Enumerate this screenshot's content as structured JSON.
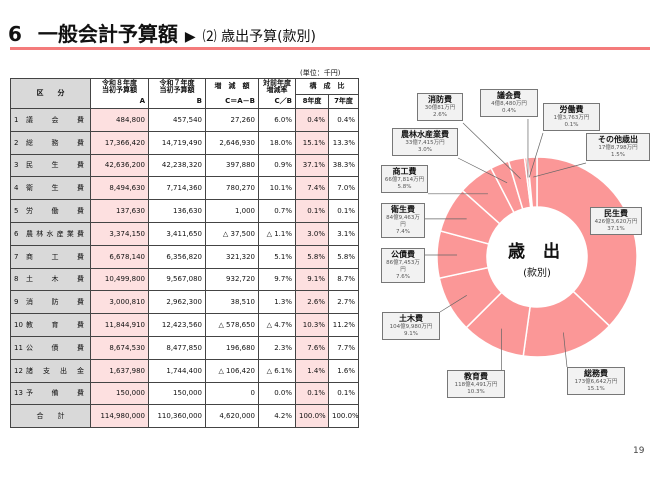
{
  "header": {
    "number": "6",
    "title": "一般会計予算額",
    "arrow": "▶",
    "subtitle": "⑵ 歳出予算(款別)"
  },
  "unit": "(単位：千円)",
  "page_number": "19",
  "table": {
    "headers": {
      "category": "区　　分",
      "a": "令和８年度\n当初予算額",
      "b": "令和７年度\n当初予算額",
      "c": "増　減　額",
      "cb": "対前年度\n増減率",
      "ratio": "構　成　比",
      "a_sub": "A",
      "b_sub": "B",
      "c_sub": "C＝A－B",
      "cb_sub": "C／B",
      "r8": "8年度",
      "r7": "7年度"
    },
    "rows": [
      {
        "no": "1",
        "name": "議　会　費",
        "a": "484,800",
        "b": "457,540",
        "c": "27,260",
        "cb": "6.0%",
        "r8": "0.4%",
        "r7": "0.4%"
      },
      {
        "no": "2",
        "name": "総　務　費",
        "a": "17,366,420",
        "b": "14,719,490",
        "c": "2,646,930",
        "cb": "18.0%",
        "r8": "15.1%",
        "r7": "13.3%"
      },
      {
        "no": "3",
        "name": "民　生　費",
        "a": "42,636,200",
        "b": "42,238,320",
        "c": "397,880",
        "cb": "0.9%",
        "r8": "37.1%",
        "r7": "38.3%"
      },
      {
        "no": "4",
        "name": "衛　生　費",
        "a": "8,494,630",
        "b": "7,714,360",
        "c": "780,270",
        "cb": "10.1%",
        "r8": "7.4%",
        "r7": "7.0%"
      },
      {
        "no": "5",
        "name": "労　働　費",
        "a": "137,630",
        "b": "136,630",
        "c": "1,000",
        "cb": "0.7%",
        "r8": "0.1%",
        "r7": "0.1%"
      },
      {
        "no": "6",
        "name": "農林水産業費",
        "a": "3,374,150",
        "b": "3,411,650",
        "c": "△ 37,500",
        "cb": "△ 1.1%",
        "r8": "3.0%",
        "r7": "3.1%"
      },
      {
        "no": "7",
        "name": "商　工　費",
        "a": "6,678,140",
        "b": "6,356,820",
        "c": "321,320",
        "cb": "5.1%",
        "r8": "5.8%",
        "r7": "5.8%"
      },
      {
        "no": "8",
        "name": "土　木　費",
        "a": "10,499,800",
        "b": "9,567,080",
        "c": "932,720",
        "cb": "9.7%",
        "r8": "9.1%",
        "r7": "8.7%"
      },
      {
        "no": "9",
        "name": "消　防　費",
        "a": "3,000,810",
        "b": "2,962,300",
        "c": "38,510",
        "cb": "1.3%",
        "r8": "2.6%",
        "r7": "2.7%"
      },
      {
        "no": "10",
        "name": "教　育　費",
        "a": "11,844,910",
        "b": "12,423,560",
        "c": "△ 578,650",
        "cb": "△ 4.7%",
        "r8": "10.3%",
        "r7": "11.2%"
      },
      {
        "no": "11",
        "name": "公　債　費",
        "a": "8,674,530",
        "b": "8,477,850",
        "c": "196,680",
        "cb": "2.3%",
        "r8": "7.6%",
        "r7": "7.7%"
      },
      {
        "no": "12",
        "name": "諸 支 出 金",
        "a": "1,637,980",
        "b": "1,744,400",
        "c": "△ 106,420",
        "cb": "△ 6.1%",
        "r8": "1.4%",
        "r7": "1.6%"
      },
      {
        "no": "13",
        "name": "予　備　費",
        "a": "150,000",
        "b": "150,000",
        "c": "0",
        "cb": "0.0%",
        "r8": "0.1%",
        "r7": "0.1%"
      }
    ],
    "total": {
      "name": "合　　計",
      "a": "114,980,000",
      "b": "110,360,000",
      "c": "4,620,000",
      "cb": "4.2%",
      "r8": "100.0%",
      "r7": "100.0%"
    }
  },
  "chart_data": {
    "type": "pie",
    "style": "donut",
    "center_title": "歳 出",
    "center_subtitle": "(款別)",
    "colors": {
      "slice": "#fb9797",
      "separator": "#ffffff",
      "accent": "#f47b7b"
    },
    "slices": [
      {
        "name": "民生費",
        "amount": "426億3,620万円",
        "percent": 37.1
      },
      {
        "name": "総務費",
        "amount": "173億6,642万円",
        "percent": 15.1
      },
      {
        "name": "教育費",
        "amount": "118億4,491万円",
        "percent": 10.3
      },
      {
        "name": "土木費",
        "amount": "104億9,980万円",
        "percent": 9.1
      },
      {
        "name": "公債費",
        "amount": "86億7,453万円",
        "percent": 7.6
      },
      {
        "name": "衛生費",
        "amount": "84億9,463万円",
        "percent": 7.4
      },
      {
        "name": "商工費",
        "amount": "66億7,814万円",
        "percent": 5.8
      },
      {
        "name": "農林水産業費",
        "amount": "33億7,415万円",
        "percent": 3.0
      },
      {
        "name": "消防費",
        "amount": "30億81万円",
        "percent": 2.6
      },
      {
        "name": "議会費",
        "amount": "4億8,480万円",
        "percent": 0.4
      },
      {
        "name": "労働費",
        "amount": "1億3,763万円",
        "percent": 0.1
      },
      {
        "name": "その他歳出",
        "amount": "17億8,798万円",
        "percent": 1.5
      }
    ]
  }
}
